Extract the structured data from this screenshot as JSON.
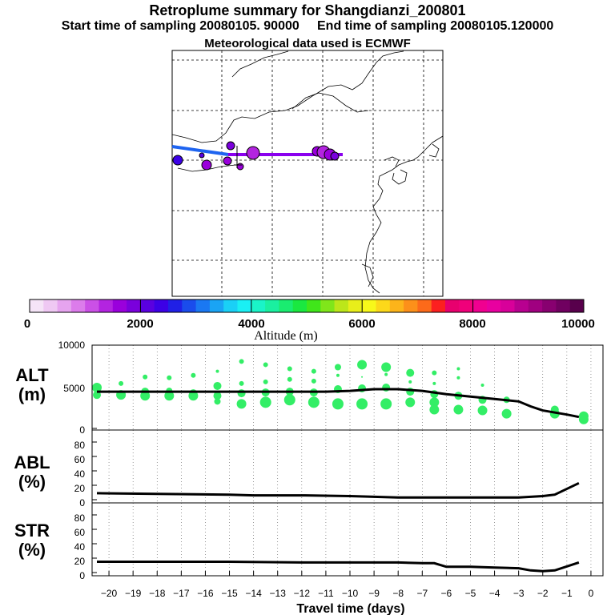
{
  "title": "Retroplume summary for Shangdianzi_200801",
  "start_label": "Start time of sampling 20080105. 90000",
  "end_label": "End time of sampling 20080105.120000",
  "met_label": "Meteorological data used is ECMWF",
  "colorbar": {
    "ticks": [
      "0",
      "2000",
      "4000",
      "6000",
      "8000",
      "10000"
    ],
    "label": "Altitude (m)",
    "colors": [
      "#f5e4f7",
      "#efc8f3",
      "#e6a4ef",
      "#dc7ceb",
      "#cb50e6",
      "#b324e0",
      "#9a00dc",
      "#7a00dc",
      "#5a00e0",
      "#3c00e6",
      "#2020e6",
      "#1a4cec",
      "#1a78f2",
      "#1aa4f4",
      "#1ad0f6",
      "#1af0f4",
      "#1af4c8",
      "#1af0a0",
      "#1aec70",
      "#1ae840",
      "#40e61a",
      "#80e61a",
      "#bce61a",
      "#e8ee1a",
      "#f8f81a",
      "#fcd81a",
      "#fcb41a",
      "#fc901a",
      "#fc6a1a",
      "#fc2020",
      "#e8006e",
      "#f0007a",
      "#f00090",
      "#e800a0",
      "#d8009a",
      "#b80090",
      "#a00080",
      "#880070",
      "#700060",
      "#58004c"
    ]
  },
  "map": {
    "trajectory_color": "#8a00ee",
    "west_segment_color": "#1e64f0"
  },
  "chart_data": [
    {
      "type": "line",
      "panel_label": [
        "ALT",
        "(m)"
      ],
      "x": [
        -20.5,
        -19,
        -18,
        -17,
        -16,
        -15,
        -14,
        -13,
        -12,
        -11,
        -10,
        -9,
        -8,
        -7,
        -6,
        -5,
        -4,
        -3,
        -2.5,
        -2,
        -1,
        -0.5
      ],
      "series": [
        {
          "name": "median altitude",
          "values": [
            4500,
            4500,
            4500,
            4500,
            4500,
            4500,
            4500,
            4500,
            4500,
            4500,
            4600,
            4800,
            4800,
            4600,
            4200,
            3900,
            3600,
            3300,
            2700,
            2200,
            1700,
            1400
          ]
        }
      ],
      "dots": [
        {
          "x": -20.5,
          "ys": [
            5000,
            4100
          ],
          "r": [
            6,
            5
          ]
        },
        {
          "x": -19.5,
          "ys": [
            5500,
            4100
          ],
          "r": [
            3,
            6
          ]
        },
        {
          "x": -18.5,
          "ys": [
            6300,
            4500,
            4000
          ],
          "r": [
            3,
            5,
            6
          ]
        },
        {
          "x": -17.5,
          "ys": [
            6200,
            4600,
            4000
          ],
          "r": [
            3,
            4,
            6
          ]
        },
        {
          "x": -16.5,
          "ys": [
            6500,
            4300,
            4000
          ],
          "r": [
            3,
            5,
            6
          ]
        },
        {
          "x": -15.5,
          "ys": [
            7000,
            5200,
            4000,
            3300
          ],
          "r": [
            2,
            5,
            5,
            4
          ]
        },
        {
          "x": -14.5,
          "ys": [
            8200,
            5500,
            4300,
            3000
          ],
          "r": [
            3,
            3,
            5,
            6
          ]
        },
        {
          "x": -13.5,
          "ys": [
            7800,
            5700,
            4400,
            3200
          ],
          "r": [
            3,
            3,
            5,
            7
          ]
        },
        {
          "x": -12.5,
          "ys": [
            7300,
            6000,
            4500,
            3500
          ],
          "r": [
            3,
            3,
            5,
            7
          ]
        },
        {
          "x": -11.5,
          "ys": [
            7000,
            5800,
            4400,
            3200
          ],
          "r": [
            3,
            3,
            5,
            7
          ]
        },
        {
          "x": -10.5,
          "ys": [
            7500,
            6500,
            4800,
            3000
          ],
          "r": [
            4,
            2,
            5,
            7
          ]
        },
        {
          "x": -9.5,
          "ys": [
            7800,
            6300,
            4900,
            3000
          ],
          "r": [
            6,
            1,
            5,
            7
          ]
        },
        {
          "x": -8.5,
          "ys": [
            7500,
            6600,
            5000,
            3000
          ],
          "r": [
            6,
            2,
            5,
            7
          ]
        },
        {
          "x": -7.5,
          "ys": [
            6800,
            5700,
            4500,
            3200
          ],
          "r": [
            5,
            2,
            5,
            6
          ]
        },
        {
          "x": -6.5,
          "ys": [
            6800,
            5500,
            4200,
            3200,
            2300
          ],
          "r": [
            3,
            2,
            5,
            6,
            6
          ]
        },
        {
          "x": -5.5,
          "ys": [
            7300,
            6200,
            4000,
            2300
          ],
          "r": [
            2,
            2,
            5,
            6
          ]
        },
        {
          "x": -4.5,
          "ys": [
            5300,
            3500,
            2200
          ],
          "r": [
            2,
            5,
            6
          ]
        },
        {
          "x": -3.5,
          "ys": [
            3500,
            1800
          ],
          "r": [
            4,
            6
          ]
        },
        {
          "x": -1.5,
          "ys": [
            2300,
            1800
          ],
          "r": [
            5,
            6
          ]
        },
        {
          "x": -0.3,
          "ys": [
            1500,
            1100
          ],
          "r": [
            6,
            6
          ]
        }
      ],
      "ylim": [
        0,
        10000
      ],
      "yticks": [
        "0",
        "5000",
        "10000"
      ]
    },
    {
      "type": "line",
      "panel_label": [
        "ABL",
        "(%)"
      ],
      "x": [
        -20.5,
        -18,
        -15,
        -14,
        -12,
        -10,
        -9,
        -8,
        -7,
        -6,
        -5,
        -4,
        -3,
        -2,
        -1.5,
        -0.5
      ],
      "series": [
        {
          "name": "ABL fraction",
          "values": [
            9,
            8,
            7,
            6,
            6,
            5,
            4,
            3,
            3,
            3,
            3,
            3,
            3,
            5,
            7,
            23
          ]
        }
      ],
      "ylim": [
        0,
        100
      ],
      "yticks": [
        "0",
        "20",
        "40",
        "60",
        "80"
      ]
    },
    {
      "type": "line",
      "panel_label": [
        "STR",
        "(%)"
      ],
      "x": [
        -20.5,
        -18,
        -15,
        -12,
        -9,
        -8,
        -7,
        -6.5,
        -6,
        -5,
        -4,
        -3,
        -2.5,
        -2,
        -1.5,
        -0.5
      ],
      "series": [
        {
          "name": "stratospheric fraction",
          "values": [
            15,
            15,
            15,
            14,
            14,
            14,
            13,
            13,
            8,
            8,
            7,
            6,
            3,
            2,
            3,
            14
          ]
        }
      ],
      "ylim": [
        0,
        100
      ],
      "yticks": [
        "0",
        "20",
        "40",
        "60",
        "80"
      ]
    }
  ],
  "x_axis": {
    "ticks": [
      "−20",
      "−19",
      "−18",
      "−17",
      "−16",
      "−15",
      "−14",
      "−13",
      "−12",
      "−11",
      "−10",
      "−9",
      "−8",
      "−7",
      "−6",
      "−5",
      "−4",
      "−3",
      "−2",
      "−1",
      "0"
    ],
    "label": "Travel time (days)"
  },
  "dot_color": "#33ee66"
}
